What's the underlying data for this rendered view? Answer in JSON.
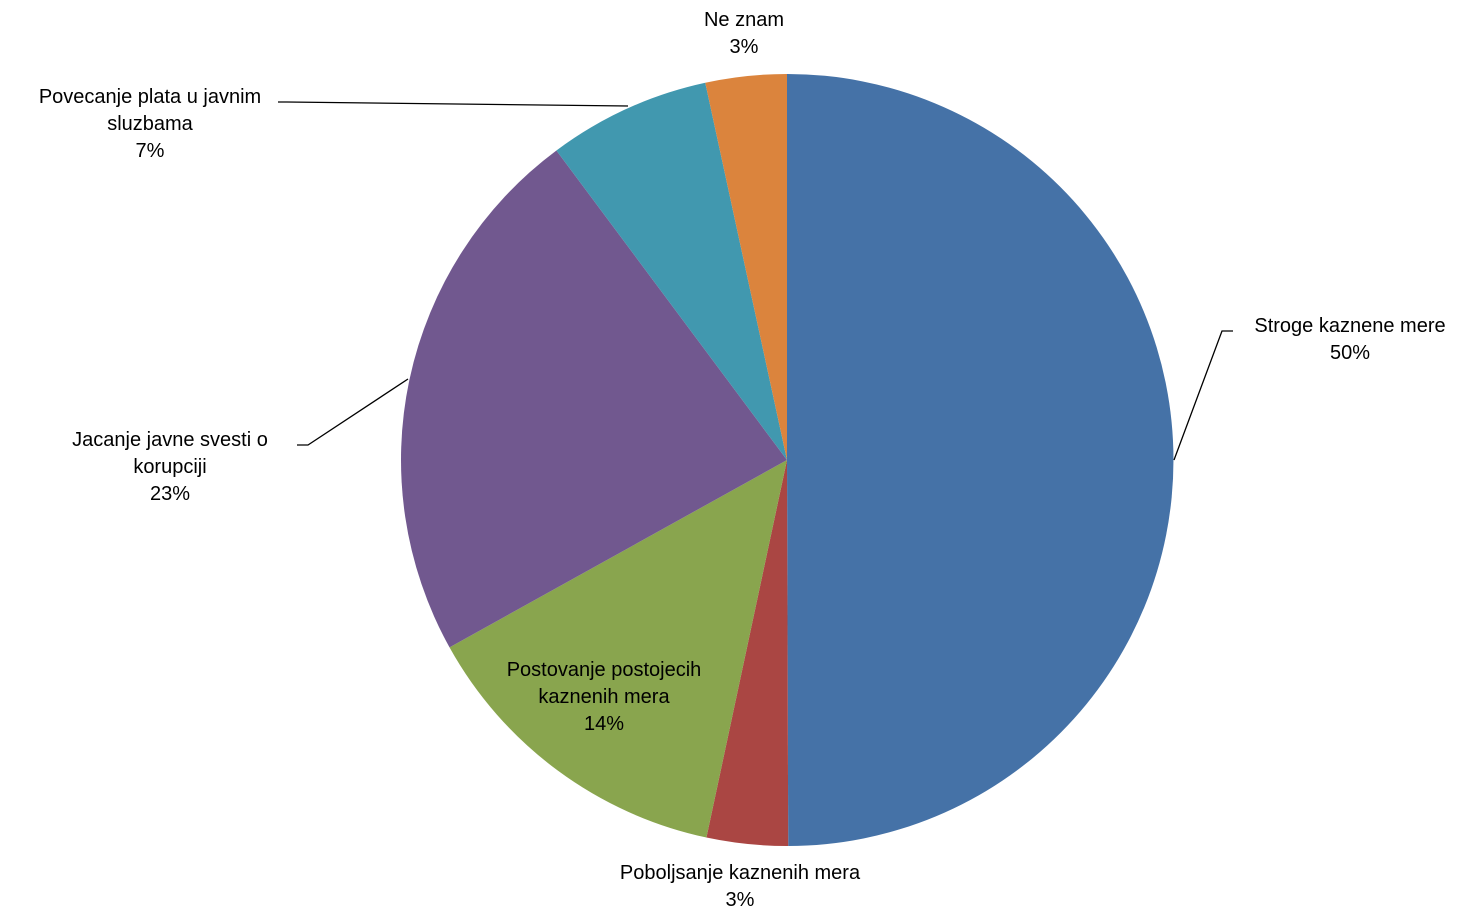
{
  "chart_data": {
    "type": "pie",
    "title": "",
    "slices": [
      {
        "label": "Stroge kaznene mere",
        "line1": "Stroge kaznene mere",
        "line2": "",
        "pct_text": "50%",
        "value": 50,
        "color": "#4572A7"
      },
      {
        "label": "Poboljsanje kaznenih mera",
        "line1": "Poboljsanje kaznenih mera",
        "line2": "",
        "pct_text": "3%",
        "value": 3.4,
        "color": "#AA4643"
      },
      {
        "label": "Postovanje postojecih kaznenih mera",
        "line1": "Postovanje postojecih",
        "line2": "kaznenih mera",
        "pct_text": "14%",
        "value": 13.6,
        "color": "#89A54E"
      },
      {
        "label": "Jacanje javne svesti o korupciji",
        "line1": "Jacanje javne svesti  o",
        "line2": "korupciji",
        "pct_text": "23%",
        "value": 22.9,
        "color": "#71588F"
      },
      {
        "label": "Povecanje plata u javnim sluzbama",
        "line1": "Povecanje plata u javnim",
        "line2": "sluzbama",
        "pct_text": "7%",
        "value": 6.8,
        "color": "#4198AF"
      },
      {
        "label": "Ne znam",
        "line1": "Ne znam",
        "line2": "",
        "pct_text": "3%",
        "value": 3.4,
        "color": "#DB843D"
      }
    ],
    "legend": "none",
    "data_labels": "category name and percentage"
  }
}
